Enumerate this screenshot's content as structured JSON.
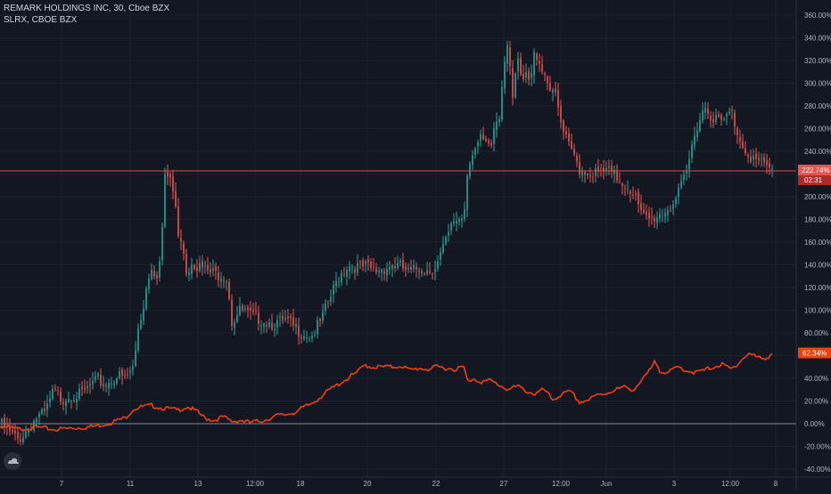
{
  "header": {
    "title": "REMARK HOLDINGS INC, 30, Cboe BZX",
    "compare": "SLRX, CBOE BZX"
  },
  "colors": {
    "background": "#131722",
    "grid": "#1e222d",
    "up": "#26a69a",
    "down": "#ef5350",
    "compare_line": "#f23f0b",
    "price_line": "#ef5350",
    "zero_line": "#b2b5be",
    "axis_text": "#b2b5be"
  },
  "chart_data": {
    "type": "candlestick",
    "title": "REMARK HOLDINGS INC, 30, Cboe BZX",
    "y_unit": "percent",
    "ylim": [
      -45,
      365
    ],
    "y_ticks": [
      "360.00%",
      "340.00%",
      "320.00%",
      "300.00%",
      "280.00%",
      "260.00%",
      "240.00%",
      "220.00%",
      "200.00%",
      "180.00%",
      "160.00%",
      "140.00%",
      "120.00%",
      "100.00%",
      "80.00%",
      "60.00%",
      "40.00%",
      "20.00%",
      "0.00%",
      "-20.00%",
      "-40.00%"
    ],
    "x_ticks": [
      "7",
      "11",
      "13",
      "12:00",
      "18",
      "20",
      "22",
      "27",
      "12:00",
      "Jun",
      "3",
      "12:00",
      "8"
    ],
    "grid": true,
    "legend": "top-left",
    "last_price_label": "222.74%",
    "countdown_label": "02:31",
    "compare_last_label": "62.34%",
    "main_anchors": [
      [
        0,
        0
      ],
      [
        10,
        -8
      ],
      [
        20,
        -14
      ],
      [
        30,
        -6
      ],
      [
        40,
        5
      ],
      [
        50,
        8
      ],
      [
        60,
        28
      ],
      [
        70,
        22
      ],
      [
        80,
        26
      ],
      [
        90,
        25
      ],
      [
        100,
        32
      ],
      [
        110,
        38
      ],
      [
        120,
        35
      ],
      [
        130,
        42
      ],
      [
        140,
        40
      ],
      [
        150,
        50
      ],
      [
        155,
        85
      ],
      [
        160,
        100
      ],
      [
        165,
        125
      ],
      [
        170,
        140
      ],
      [
        175,
        130
      ],
      [
        180,
        145
      ],
      [
        185,
        215
      ],
      [
        190,
        220
      ],
      [
        195,
        200
      ],
      [
        200,
        170
      ],
      [
        205,
        160
      ],
      [
        210,
        130
      ],
      [
        215,
        145
      ],
      [
        220,
        140
      ],
      [
        230,
        135
      ],
      [
        240,
        132
      ],
      [
        250,
        132
      ],
      [
        255,
        128
      ],
      [
        260,
        90
      ],
      [
        265,
        95
      ],
      [
        270,
        100
      ],
      [
        280,
        95
      ],
      [
        290,
        93
      ],
      [
        300,
        90
      ],
      [
        310,
        88
      ],
      [
        320,
        90
      ],
      [
        330,
        85
      ],
      [
        340,
        80
      ],
      [
        350,
        78
      ],
      [
        360,
        90
      ],
      [
        370,
        110
      ],
      [
        380,
        130
      ],
      [
        390,
        140
      ],
      [
        400,
        138
      ],
      [
        410,
        138
      ],
      [
        420,
        135
      ],
      [
        430,
        137
      ],
      [
        440,
        140
      ],
      [
        450,
        138
      ],
      [
        460,
        132
      ],
      [
        470,
        138
      ],
      [
        480,
        135
      ],
      [
        490,
        140
      ],
      [
        500,
        160
      ],
      [
        510,
        180
      ],
      [
        520,
        183
      ],
      [
        525,
        230
      ],
      [
        530,
        240
      ],
      [
        540,
        250
      ],
      [
        550,
        240
      ],
      [
        555,
        265
      ],
      [
        560,
        270
      ],
      [
        565,
        320
      ],
      [
        570,
        340
      ],
      [
        575,
        290
      ],
      [
        580,
        320
      ],
      [
        585,
        300
      ],
      [
        590,
        305
      ],
      [
        595,
        300
      ],
      [
        600,
        330
      ],
      [
        605,
        320
      ],
      [
        610,
        310
      ],
      [
        615,
        300
      ],
      [
        620,
        295
      ],
      [
        625,
        280
      ],
      [
        630,
        260
      ],
      [
        635,
        250
      ],
      [
        640,
        240
      ],
      [
        645,
        235
      ],
      [
        650,
        225
      ],
      [
        660,
        222
      ],
      [
        670,
        220
      ],
      [
        680,
        222
      ],
      [
        690,
        218
      ],
      [
        700,
        212
      ],
      [
        710,
        205
      ],
      [
        720,
        182
      ],
      [
        730,
        180
      ],
      [
        740,
        185
      ],
      [
        750,
        190
      ],
      [
        760,
        200
      ],
      [
        770,
        220
      ],
      [
        780,
        260
      ],
      [
        790,
        280
      ],
      [
        800,
        270
      ],
      [
        810,
        265
      ],
      [
        820,
        275
      ],
      [
        830,
        250
      ],
      [
        840,
        238
      ],
      [
        850,
        230
      ],
      [
        860,
        226
      ],
      [
        866,
        222.74
      ]
    ],
    "compare_series": {
      "name": "SLRX, CBOE BZX",
      "last": 62.34,
      "anchors": [
        [
          0,
          -2
        ],
        [
          20,
          -5
        ],
        [
          40,
          -3
        ],
        [
          60,
          -5
        ],
        [
          80,
          -4
        ],
        [
          100,
          -3
        ],
        [
          120,
          0
        ],
        [
          140,
          5
        ],
        [
          150,
          13
        ],
        [
          160,
          15
        ],
        [
          170,
          16
        ],
        [
          180,
          14
        ],
        [
          190,
          13
        ],
        [
          200,
          12
        ],
        [
          210,
          15
        ],
        [
          220,
          11
        ],
        [
          230,
          5
        ],
        [
          240,
          3
        ],
        [
          250,
          6
        ],
        [
          260,
          2
        ],
        [
          270,
          3
        ],
        [
          280,
          1
        ],
        [
          290,
          2
        ],
        [
          300,
          4
        ],
        [
          310,
          7
        ],
        [
          320,
          8
        ],
        [
          330,
          10
        ],
        [
          340,
          14
        ],
        [
          350,
          18
        ],
        [
          360,
          24
        ],
        [
          370,
          30
        ],
        [
          380,
          35
        ],
        [
          390,
          40
        ],
        [
          400,
          45
        ],
        [
          410,
          52
        ],
        [
          415,
          50
        ],
        [
          420,
          50
        ],
        [
          430,
          50
        ],
        [
          440,
          50
        ],
        [
          450,
          51
        ],
        [
          460,
          47
        ],
        [
          470,
          49
        ],
        [
          480,
          48
        ],
        [
          490,
          50
        ],
        [
          500,
          49
        ],
        [
          510,
          48
        ],
        [
          520,
          50
        ],
        [
          525,
          36
        ],
        [
          530,
          40
        ],
        [
          540,
          37
        ],
        [
          550,
          38
        ],
        [
          560,
          34
        ],
        [
          570,
          30
        ],
        [
          580,
          33
        ],
        [
          590,
          29
        ],
        [
          600,
          26
        ],
        [
          610,
          30
        ],
        [
          620,
          21
        ],
        [
          630,
          26
        ],
        [
          640,
          28
        ],
        [
          650,
          19
        ],
        [
          660,
          21
        ],
        [
          670,
          25
        ],
        [
          680,
          27
        ],
        [
          690,
          30
        ],
        [
          700,
          32
        ],
        [
          710,
          30
        ],
        [
          720,
          38
        ],
        [
          730,
          48
        ],
        [
          735,
          55
        ],
        [
          740,
          47
        ],
        [
          750,
          45
        ],
        [
          760,
          50
        ],
        [
          770,
          47
        ],
        [
          780,
          45
        ],
        [
          790,
          47
        ],
        [
          800,
          50
        ],
        [
          810,
          52
        ],
        [
          820,
          48
        ],
        [
          830,
          55
        ],
        [
          840,
          62
        ],
        [
          850,
          58
        ],
        [
          860,
          58
        ],
        [
          866,
          62.34
        ]
      ]
    }
  }
}
